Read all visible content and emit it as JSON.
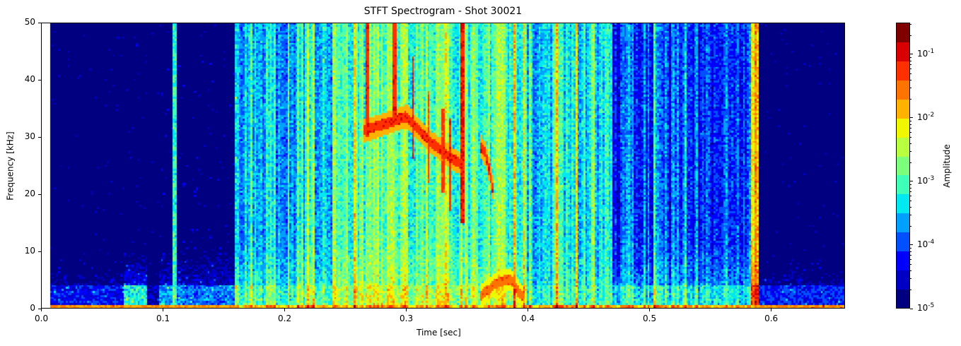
{
  "chart_data": {
    "type": "heatmap",
    "title": "STFT Spectrogram - Shot 30021",
    "xlabel": "Time [sec]",
    "ylabel": "Frequency [kHz]",
    "xlim": [
      0.0,
      0.661
    ],
    "ylim": [
      0,
      50
    ],
    "data_time_range": [
      0.0077,
      0.661
    ],
    "xticks": [
      "0.0",
      "0.1",
      "0.2",
      "0.3",
      "0.4",
      "0.5",
      "0.6"
    ],
    "xtick_values": [
      0.0,
      0.1,
      0.2,
      0.3,
      0.4,
      0.5,
      0.6
    ],
    "yticks": [
      "0",
      "10",
      "20",
      "30",
      "40",
      "50"
    ],
    "ytick_values": [
      0,
      10,
      20,
      30,
      40,
      50
    ],
    "colormap": "jet (discrete, 15 levels)",
    "colorbar": {
      "label": "Amplitude",
      "scale": "log",
      "range": [
        1e-05,
        0.316
      ],
      "tick_exponents": [
        -5,
        -4,
        -3,
        -2,
        -1
      ],
      "tick_base": "10",
      "colors": [
        "#000080",
        "#0000c4",
        "#0000ff",
        "#0050ff",
        "#00a0ff",
        "#00e8f0",
        "#40ffb8",
        "#7cff7c",
        "#b8ff40",
        "#f0f800",
        "#ffb200",
        "#ff7400",
        "#ff3000",
        "#d80000",
        "#800000"
      ]
    },
    "segments_log10_amplitude": [
      {
        "t": [
          0.0077,
          0.068
        ],
        "high_freq": -5.4,
        "low_freq_below_4kHz": -4.3
      },
      {
        "t": [
          0.068,
          0.088
        ],
        "high_freq": -5.3,
        "low_freq_below_4kHz": -3.2
      },
      {
        "t": [
          0.088,
          0.097
        ],
        "high_freq": -5.4,
        "low_freq_below_4kHz": -4.6
      },
      {
        "t": [
          0.097,
          0.108
        ],
        "high_freq": -5.2,
        "low_freq_below_4kHz": -3.6
      },
      {
        "t": [
          0.108,
          0.112
        ],
        "high_freq": -3.0,
        "low_freq_below_4kHz": -2.8
      },
      {
        "t": [
          0.112,
          0.16
        ],
        "high_freq": -5.2,
        "low_freq_below_4kHz": -3.8
      },
      {
        "t": [
          0.16,
          0.24
        ],
        "high_freq": -3.4,
        "low_freq_below_4kHz": -2.8
      },
      {
        "t": [
          0.24,
          0.4
        ],
        "high_freq": -2.9,
        "low_freq_below_4kHz": -2.4
      },
      {
        "t": [
          0.4,
          0.47
        ],
        "high_freq": -3.3,
        "low_freq_below_4kHz": -3.0
      },
      {
        "t": [
          0.47,
          0.583
        ],
        "high_freq": -4.0,
        "low_freq_below_4kHz": -3.2
      },
      {
        "t": [
          0.583,
          0.59
        ],
        "high_freq": -1.8,
        "low_freq_below_4kHz": -1.0
      },
      {
        "t": [
          0.59,
          0.661
        ],
        "high_freq": -5.4,
        "low_freq_below_4kHz": -4.2
      }
    ],
    "mode_tracks": [
      {
        "points": [
          [
            0.265,
            31
          ],
          [
            0.3,
            33.5
          ],
          [
            0.32,
            29
          ],
          [
            0.345,
            25
          ]
        ],
        "log10_amplitude": -1.2
      },
      {
        "points": [
          [
            0.36,
            28.5
          ],
          [
            0.365,
            27
          ],
          [
            0.372,
            20
          ]
        ],
        "log10_amplitude": -1.2
      },
      {
        "points": [
          [
            0.36,
            2
          ],
          [
            0.375,
            4.5
          ],
          [
            0.385,
            5
          ],
          [
            0.395,
            2
          ]
        ],
        "log10_amplitude": -1.5
      }
    ],
    "bursts": [
      {
        "t": 0.268,
        "f": [
          30,
          50
        ],
        "log10_amplitude": -1.2
      },
      {
        "t": 0.29,
        "f": [
          32,
          50
        ],
        "log10_amplitude": -1.2
      },
      {
        "t": 0.305,
        "f": [
          26,
          44
        ],
        "log10_amplitude": -1.1
      },
      {
        "t": 0.318,
        "f": [
          22,
          38
        ],
        "log10_amplitude": -1.3
      },
      {
        "t": 0.33,
        "f": [
          20,
          35
        ],
        "log10_amplitude": -1.3
      },
      {
        "t": 0.336,
        "f": [
          17,
          33
        ],
        "log10_amplitude": -1.2
      },
      {
        "t": 0.346,
        "f": [
          15,
          50
        ],
        "log10_amplitude": -1.1
      }
    ]
  }
}
